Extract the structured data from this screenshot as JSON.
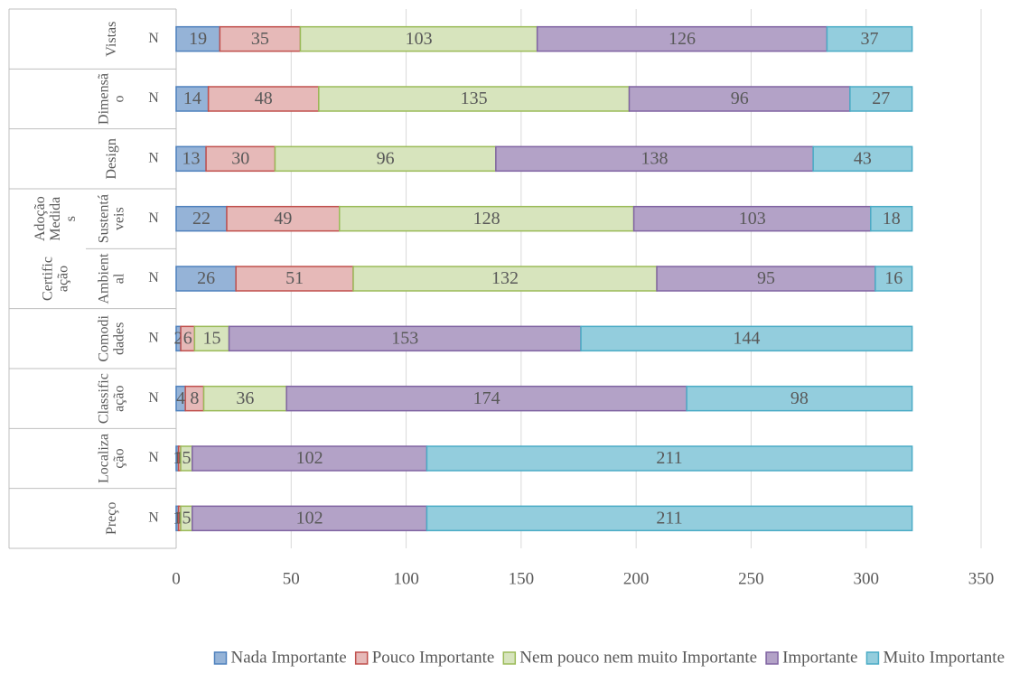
{
  "chart_data": {
    "type": "stacked_bar_horizontal",
    "categories": [
      "Vistas",
      "Dimensão",
      "Design",
      "Sustentáveis",
      "Ambiental",
      "Comodidades",
      "Classificação",
      "Localização",
      "Preço"
    ],
    "groups": [
      null,
      null,
      null,
      "Adoção Medidas",
      "Certificação",
      null,
      null,
      null,
      null
    ],
    "sublabels": [
      "N",
      "N",
      "N",
      "N",
      "N",
      "N",
      "N",
      "N",
      "N"
    ],
    "series": [
      {
        "name": "Nada Importante",
        "color": "#95b3d7",
        "border": "#4f81bd",
        "values": [
          19,
          14,
          13,
          22,
          26,
          2,
          4,
          1,
          1
        ]
      },
      {
        "name": "Pouco Importante",
        "color": "#e6b9b8",
        "border": "#c0504d",
        "values": [
          35,
          48,
          30,
          49,
          51,
          6,
          8,
          1,
          1
        ]
      },
      {
        "name": "Nem pouco nem muito Importante",
        "color": "#d7e4bd",
        "border": "#9bbb59",
        "values": [
          103,
          135,
          96,
          128,
          132,
          15,
          36,
          5,
          5
        ]
      },
      {
        "name": "Importante",
        "color": "#b3a2c7",
        "border": "#8064a2",
        "values": [
          126,
          96,
          138,
          103,
          95,
          153,
          174,
          102,
          102
        ]
      },
      {
        "name": "Muito Importante",
        "color": "#93cddd",
        "border": "#4bacc6",
        "values": [
          37,
          27,
          43,
          18,
          16,
          144,
          98,
          211,
          211
        ]
      }
    ],
    "xlim": [
      0,
      350
    ],
    "xticks": [
      0,
      50,
      100,
      150,
      200,
      250,
      300,
      350
    ],
    "grid": true,
    "legend": "bottom"
  }
}
